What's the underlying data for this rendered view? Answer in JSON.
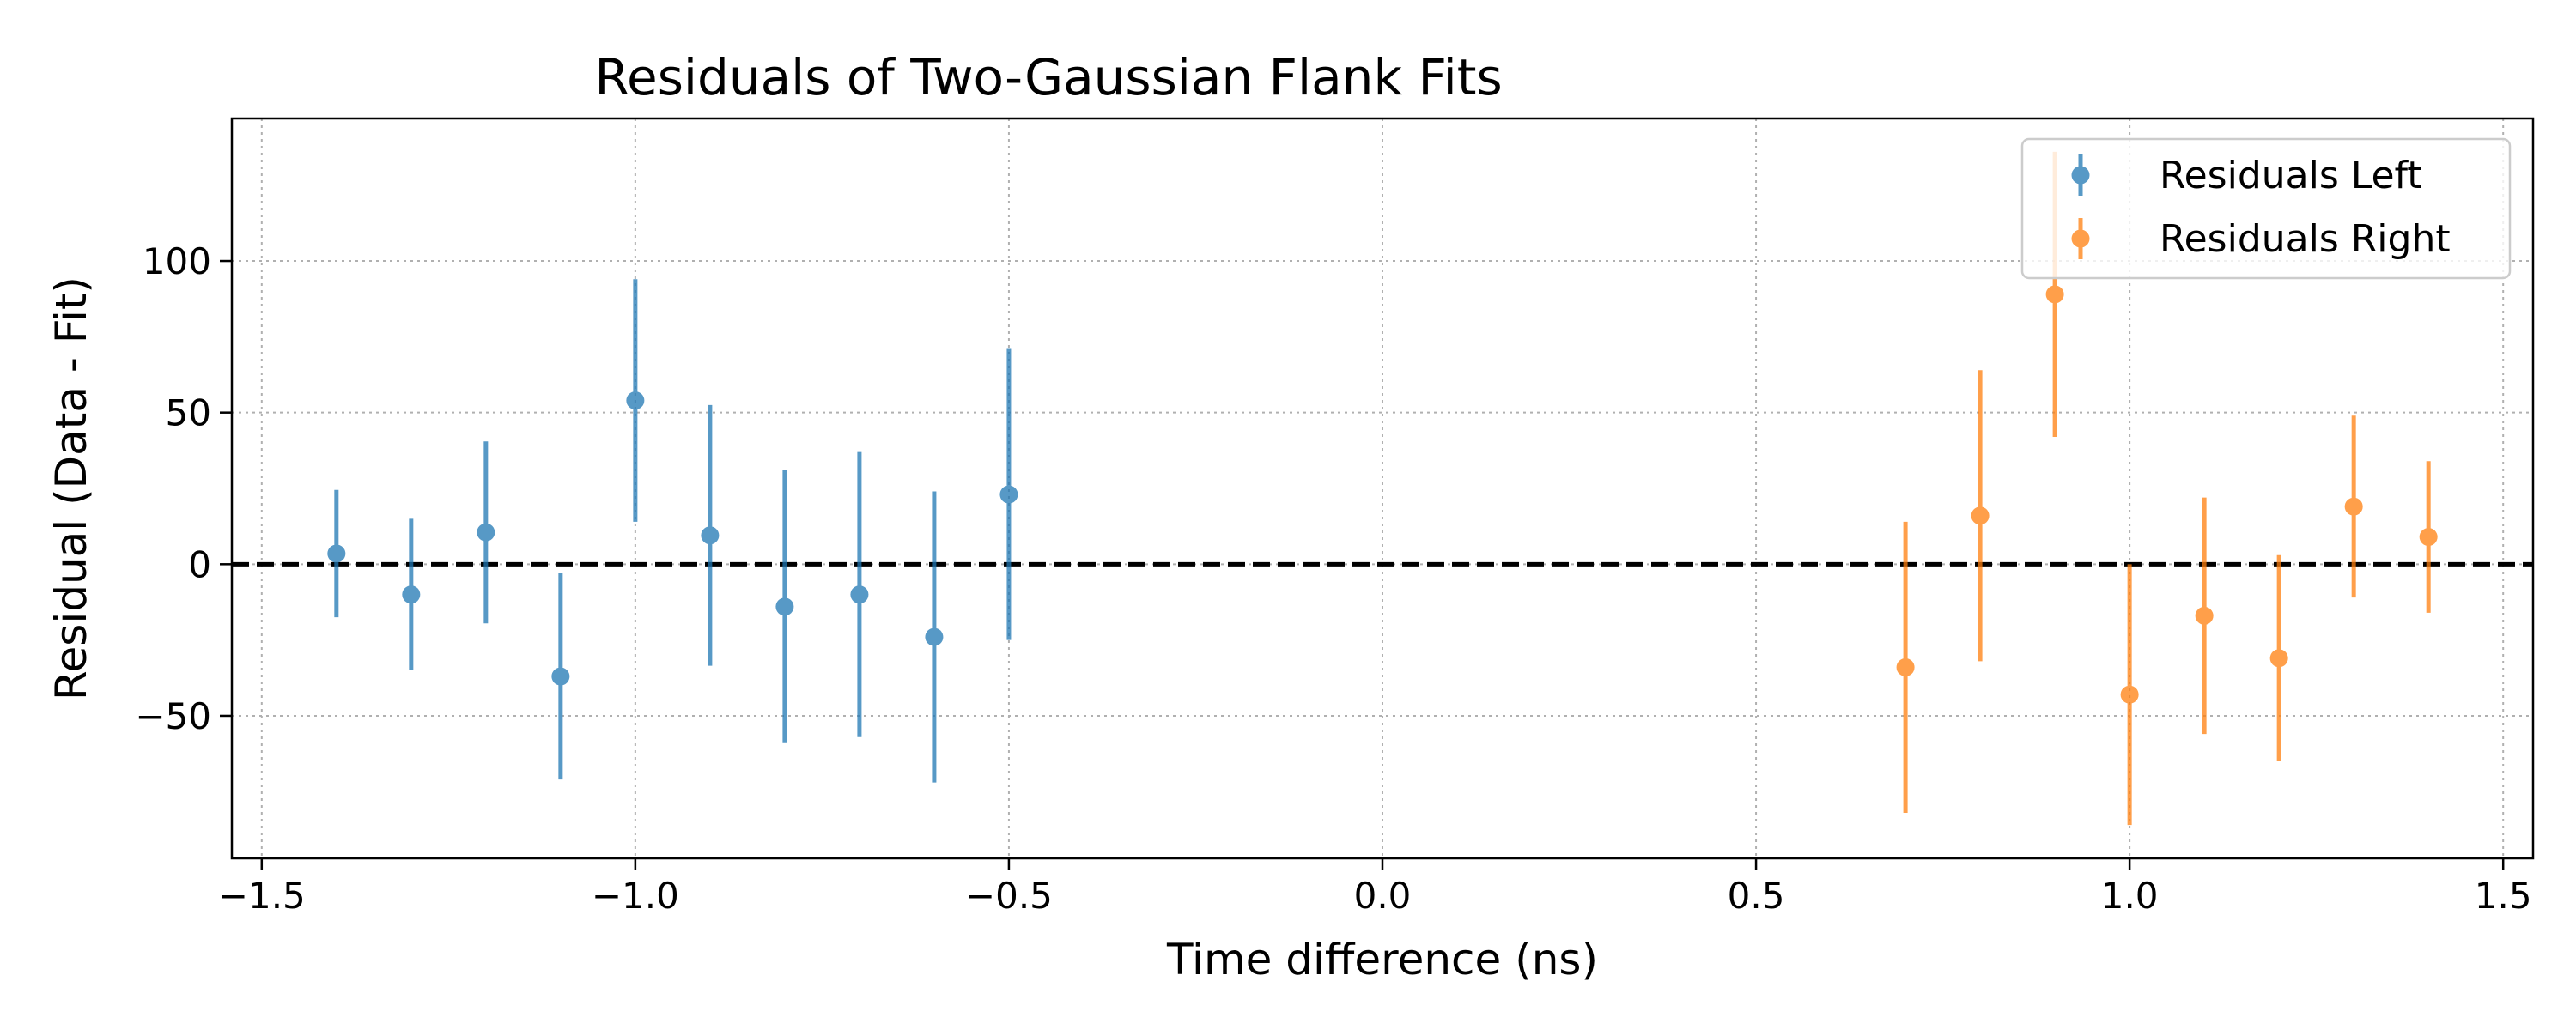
{
  "chart_data": {
    "type": "scatter",
    "title": "Residuals of Two-Gaussian Flank Fits",
    "xlabel": "Time difference (ns)",
    "ylabel": "Residual (Data - Fit)",
    "xlim": [
      -1.54,
      1.54
    ],
    "ylim": [
      -97,
      147
    ],
    "xticks": [
      -1.5,
      -1.0,
      -0.5,
      0.0,
      0.5,
      1.0,
      1.5
    ],
    "xtick_labels": [
      "−1.5",
      "−1.0",
      "−0.5",
      "0.0",
      "0.5",
      "1.0",
      "1.5"
    ],
    "yticks": [
      -50,
      0,
      50,
      100
    ],
    "ytick_labels": [
      "−50",
      "0",
      "50",
      "100"
    ],
    "grid": true,
    "reference_line": {
      "y": 0,
      "style": "dashed",
      "color": "#000000"
    },
    "legend_position": "top-right",
    "series": [
      {
        "name": "Residuals Left",
        "color": "#1f77b4",
        "x": [
          -1.4,
          -1.3,
          -1.2,
          -1.1,
          -1.0,
          -0.9,
          -0.8,
          -0.7,
          -0.6,
          -0.5
        ],
        "y": [
          3.5,
          -10,
          10.5,
          -37,
          54,
          9.5,
          -14,
          -10,
          -24,
          23
        ],
        "err": [
          21,
          25,
          30,
          34,
          40,
          43,
          45,
          47,
          48,
          48
        ]
      },
      {
        "name": "Residuals Right",
        "color": "#ff7f0e",
        "x": [
          0.7,
          0.8,
          0.9,
          1.0,
          1.1,
          1.2,
          1.3,
          1.4
        ],
        "y": [
          -34,
          16,
          89,
          -43,
          -17,
          -31,
          19,
          9
        ],
        "err": [
          48,
          48,
          47,
          43,
          39,
          34,
          30,
          25
        ]
      }
    ]
  }
}
